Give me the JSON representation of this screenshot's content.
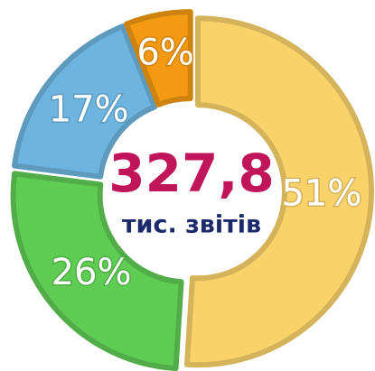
{
  "chart_data": {
    "type": "donut",
    "categories": [
      null,
      null,
      null,
      null
    ],
    "values": [
      51,
      26,
      17,
      6
    ],
    "value_labels": [
      "51%",
      "26%",
      "17%",
      "6%"
    ],
    "colors": [
      "#f9d26a",
      "#5fcc54",
      "#6db5e0",
      "#f39a12"
    ],
    "center_text": [
      "327,8",
      "тис. звітів"
    ]
  }
}
